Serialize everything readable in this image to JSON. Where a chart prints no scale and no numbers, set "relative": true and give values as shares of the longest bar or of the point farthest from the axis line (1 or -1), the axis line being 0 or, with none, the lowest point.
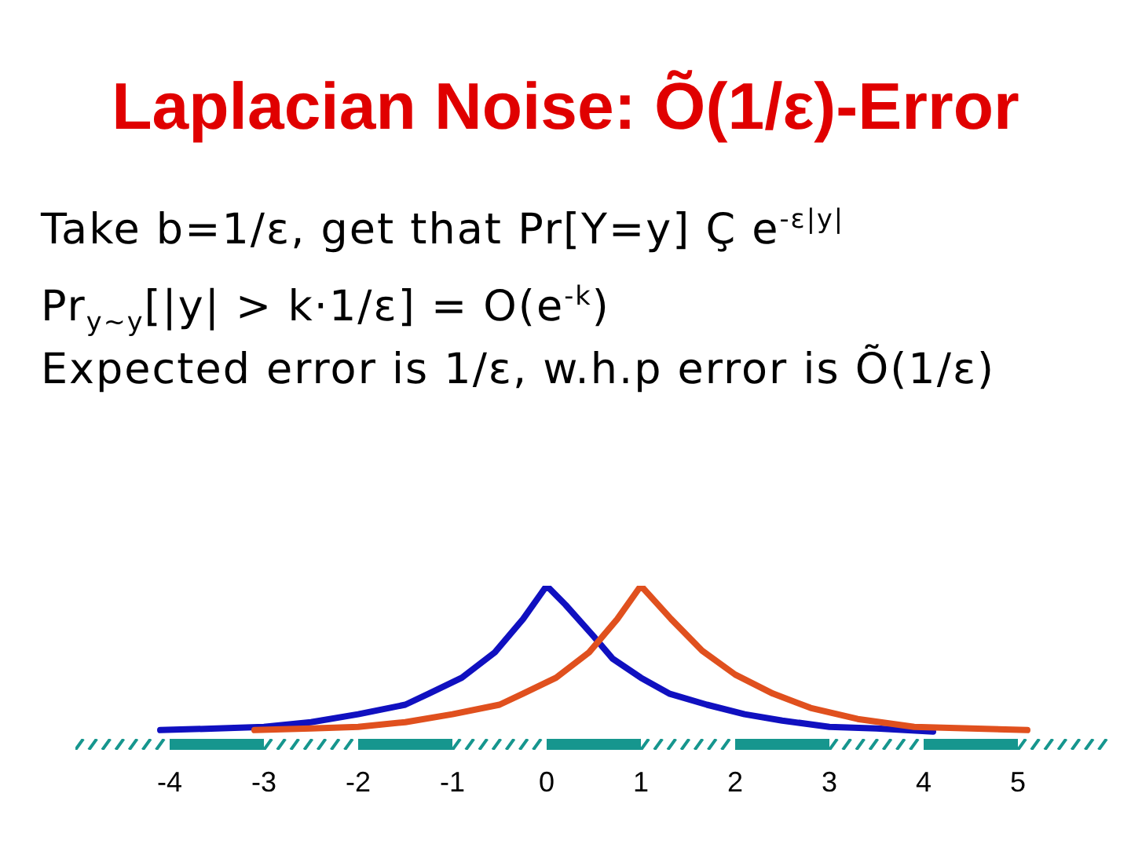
{
  "chart_data": {
    "type": "line",
    "title": "Laplacian Noise: Õ(1/ε)-Error",
    "annotations": [
      "Take b=1/ε, get that Pr[Y=y] Ç e$^{-ε|y|}$",
      "Pr$_{y~y}$[|y| > k·1/ε] = O(e$^{-k}$)",
      "Expected error is 1/ε, w.h.p error is Õ(1/ε)"
    ],
    "relative": true,
    "marker": "none",
    "xlim": [
      -5,
      6
    ],
    "xticks": [
      -4,
      -3,
      -2,
      -1,
      0,
      1,
      2,
      3,
      4,
      5
    ],
    "series": [
      {
        "color": "#1010c0",
        "x": [
          -4.1,
          -3.5,
          -3,
          -2.5,
          -2,
          -1.5,
          -1.25,
          -0.9,
          -0.55,
          -0.25,
          0,
          0.2,
          0.5,
          0.7,
          1,
          1.3,
          1.7,
          2.1,
          2.5,
          3,
          3.5,
          4.1
        ],
        "values": [
          0.09,
          0.1,
          0.11,
          0.14,
          0.19,
          0.25,
          0.32,
          0.42,
          0.58,
          0.79,
          1,
          0.88,
          0.68,
          0.54,
          0.42,
          0.32,
          0.25,
          0.19,
          0.15,
          0.11,
          0.1,
          0.08
        ]
      },
      {
        "color": "#e0501e",
        "x": [
          -3.1,
          -2.5,
          -2,
          -1.5,
          -1,
          -0.5,
          -0.25,
          0.1,
          0.45,
          0.75,
          1,
          1.32,
          1.65,
          2,
          2.4,
          2.8,
          3.3,
          3.9,
          4.5,
          5.1
        ],
        "values": [
          0.09,
          0.1,
          0.11,
          0.14,
          0.19,
          0.25,
          0.32,
          0.42,
          0.58,
          0.79,
          1,
          0.79,
          0.59,
          0.44,
          0.32,
          0.23,
          0.16,
          0.11,
          0.1,
          0.09
        ]
      }
    ]
  }
}
